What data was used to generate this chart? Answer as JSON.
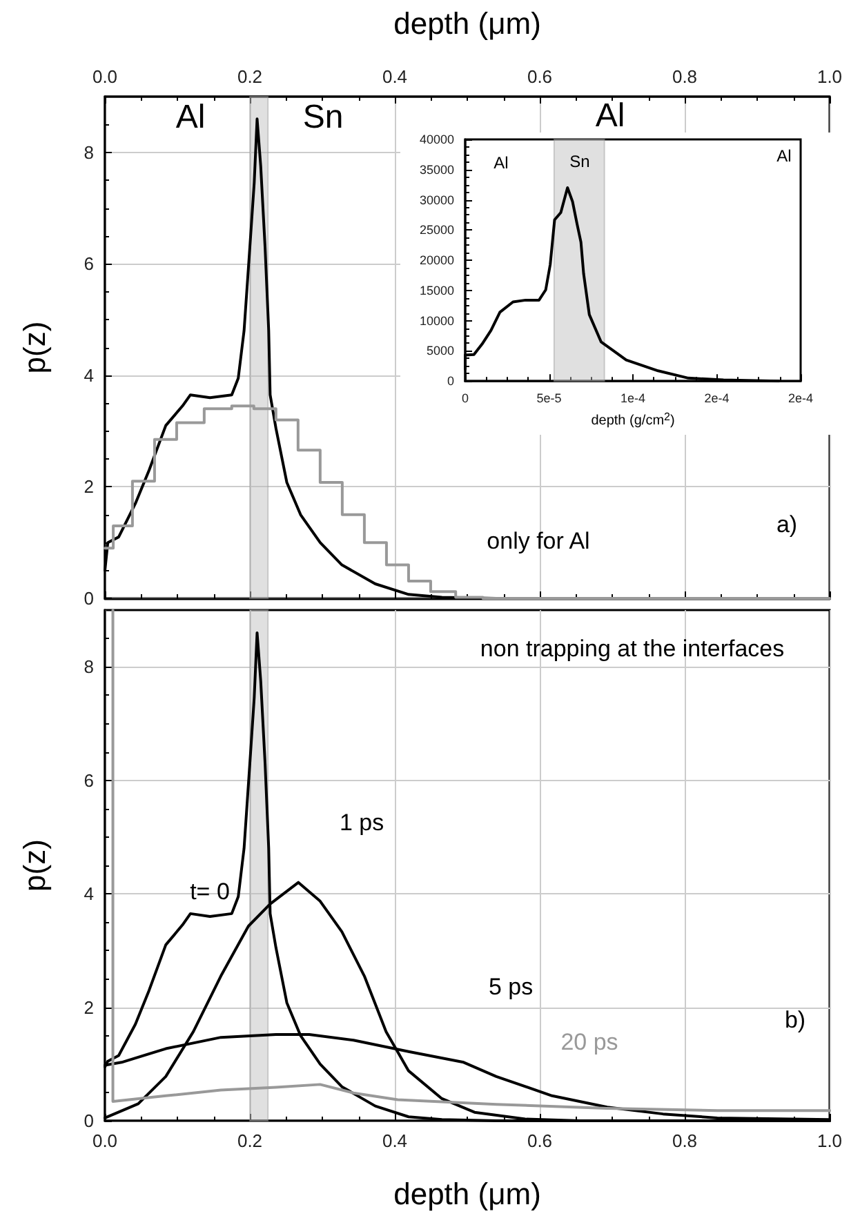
{
  "chart_data": [
    {
      "type": "line",
      "ylabel": "p(z)",
      "x2label": "depth (μm)",
      "xlim": [
        0,
        1
      ],
      "xticks": [
        {
          "value": 0,
          "label": null
        },
        {
          "value": 0.2,
          "label": null
        },
        {
          "value": 0.4,
          "label": null
        },
        {
          "value": 0.6,
          "label": null
        },
        {
          "value": 0.8,
          "label": null
        },
        {
          "value": 1,
          "label": null
        }
      ],
      "x2lim": [
        0,
        1
      ],
      "x2ticks": [
        {
          "value": 0,
          "label": "0.0"
        },
        {
          "value": 0.2,
          "label": "0.2"
        },
        {
          "value": 0.4,
          "label": "0.4"
        },
        {
          "value": 0.6,
          "label": "0.6"
        },
        {
          "value": 0.8,
          "label": "0.8"
        },
        {
          "value": 1,
          "label": "1.0"
        }
      ],
      "ylim": [
        0,
        9
      ],
      "yticks": [
        0,
        2,
        4,
        6,
        8
      ],
      "tick_labels": "y",
      "grid": true,
      "marker": "none",
      "series": [
        {
          "color": "#000000",
          "x": [
            0,
            0.004,
            0.019,
            0.042,
            0.061,
            0.084,
            0.107,
            0.118,
            0.145,
            0.175,
            0.184,
            0.192,
            0.2,
            0.206,
            0.21,
            0.215,
            0.221,
            0.226,
            0.228,
            0.236,
            0.251,
            0.27,
            0.297,
            0.327,
            0.373,
            0.419,
            0.465,
            0.54,
            1.0
          ],
          "values": [
            0.5,
            1.0,
            1.1,
            1.7,
            2.3,
            3.1,
            3.45,
            3.65,
            3.6,
            3.65,
            3.95,
            4.8,
            6.3,
            7.45,
            8.6,
            7.75,
            6.3,
            4.8,
            3.65,
            3.05,
            2.08,
            1.5,
            1.0,
            0.6,
            0.26,
            0.07,
            0.02,
            0,
            0
          ]
        },
        {
          "type": "step",
          "color": "#999999",
          "x": [
            0,
            0.023,
            0.053,
            0.084,
            0.114,
            0.16,
            0.19,
            0.221,
            0.251,
            0.282,
            0.312,
            0.343,
            0.373,
            0.404,
            0.434,
            0.465,
            0.503,
            0.54,
            1.0
          ],
          "values": [
            0.9,
            1.3,
            2.1,
            2.85,
            3.15,
            3.4,
            3.45,
            3.4,
            3.2,
            2.66,
            2.08,
            1.5,
            1.0,
            0.6,
            0.31,
            0.12,
            0.02,
            0,
            0
          ]
        }
      ],
      "bands": [
        {
          "axis": "x",
          "from": 0.2,
          "to": 0.225,
          "color": "#bbbbbb"
        }
      ],
      "annotations": [
        "Al",
        "Sn",
        "Al",
        "only for Al",
        "a)"
      ]
    },
    {
      "type": "line",
      "xlabel": "depth (g/cm$^{2}$)",
      "xlim": [
        0,
        0.0002
      ],
      "xticks": [
        0,
        {
          "value": 5e-05,
          "label": "5e-5"
        },
        {
          "value": 0.0001,
          "label": "1e-4"
        },
        {
          "value": 0.00015,
          "label": "2e-4"
        },
        {
          "value": 0.0002,
          "label": "2e-4"
        }
      ],
      "ylim": [
        0,
        40000
      ],
      "yticks": [
        0,
        5000,
        10000,
        15000,
        20000,
        25000,
        30000,
        35000,
        40000
      ],
      "marker": "none",
      "series": [
        {
          "color": "#000000",
          "x": [
            0,
            0,
            5.2e-06,
            1e-05,
            1.54e-05,
            2.07e-05,
            2.85e-05,
            3.6e-05,
            4.4e-05,
            4.8e-05,
            5.07e-05,
            5.33e-05,
            5.7e-05,
            6.1e-05,
            6.4e-05,
            6.67e-05,
            6.9e-05,
            7.06e-05,
            7.4e-05,
            8.1e-05,
            9.6e-05,
            0.000115,
            0.000133,
            0.000154,
            0.000187
          ],
          "values": [
            2000,
            4300,
            4400,
            6100,
            8400,
            11400,
            13100,
            13400,
            13400,
            15100,
            19300,
            26700,
            27900,
            32000,
            29700,
            26000,
            23000,
            17800,
            11000,
            6500,
            3500,
            1700,
            500,
            200,
            0
          ]
        }
      ],
      "bands": [
        {
          "axis": "x",
          "from": 5.3e-05,
          "to": 8.3e-05,
          "color": "#bbbbbb"
        }
      ],
      "annotations": [
        "Al",
        "Sn",
        "Al"
      ]
    },
    {
      "type": "line",
      "ylabel": "p(z)",
      "xlabel": "depth (μm)",
      "xlim": [
        0,
        1
      ],
      "xticks": [
        {
          "value": 0,
          "label": "0.0"
        },
        {
          "value": 0.2,
          "label": "0.2"
        },
        {
          "value": 0.4,
          "label": "0.4"
        },
        {
          "value": 0.6,
          "label": "0.6"
        },
        {
          "value": 0.8,
          "label": "0.8"
        },
        {
          "value": 1,
          "label": "1.0"
        }
      ],
      "ylim": [
        0,
        9
      ],
      "yticks": [
        0,
        2,
        4,
        6,
        8
      ],
      "grid": true,
      "marker": "none",
      "series": [
        {
          "name": "t= 0",
          "color": "#000000",
          "x": [
            0,
            0.004,
            0.019,
            0.042,
            0.061,
            0.084,
            0.107,
            0.118,
            0.145,
            0.175,
            0.184,
            0.192,
            0.2,
            0.206,
            0.21,
            0.215,
            0.221,
            0.226,
            0.228,
            0.236,
            0.251,
            0.27,
            0.297,
            0.327,
            0.373,
            0.419,
            0.465,
            0.54,
            1.0
          ],
          "values": [
            0.95,
            1.05,
            1.15,
            1.7,
            2.3,
            3.1,
            3.45,
            3.65,
            3.6,
            3.65,
            3.95,
            4.8,
            6.3,
            7.45,
            8.6,
            7.75,
            6.3,
            4.8,
            3.65,
            3.05,
            2.08,
            1.5,
            1.0,
            0.6,
            0.26,
            0.07,
            0.02,
            0,
            0
          ]
        },
        {
          "name": "1 ps",
          "color": "#000000",
          "x": [
            0,
            0.046,
            0.084,
            0.122,
            0.16,
            0.198,
            0.228,
            0.267,
            0.297,
            0.327,
            0.358,
            0.388,
            0.419,
            0.465,
            0.51,
            0.58,
            0.655,
            1.0
          ],
          "values": [
            0.05,
            0.3,
            0.78,
            1.57,
            2.55,
            3.43,
            3.82,
            4.2,
            3.87,
            3.33,
            2.55,
            1.57,
            0.88,
            0.39,
            0.15,
            0.03,
            0,
            0
          ]
        },
        {
          "name": "5 ps",
          "color": "#000000",
          "x": [
            0,
            0.023,
            0.084,
            0.16,
            0.236,
            0.282,
            0.343,
            0.419,
            0.495,
            0.54,
            0.617,
            0.693,
            0.77,
            0.845,
            1.0
          ],
          "values": [
            0.98,
            1.03,
            1.27,
            1.47,
            1.52,
            1.52,
            1.42,
            1.22,
            1.03,
            0.78,
            0.44,
            0.24,
            0.12,
            0.05,
            0.02
          ]
        },
        {
          "name": "20 ps",
          "color": "#999999",
          "x": [
            0.011,
            0.011,
            0.084,
            0.16,
            0.236,
            0.297,
            0.343,
            0.404,
            0.54,
            0.693,
            0.845,
            1.0
          ],
          "values": [
            9,
            0.34,
            0.44,
            0.54,
            0.59,
            0.64,
            0.49,
            0.37,
            0.29,
            0.22,
            0.18,
            0.18
          ]
        }
      ],
      "bands": [
        {
          "axis": "x",
          "from": 0.2,
          "to": 0.225,
          "color": "#bbbbbb"
        }
      ],
      "annotations": [
        "non trapping at the interfaces",
        "b)"
      ]
    }
  ]
}
